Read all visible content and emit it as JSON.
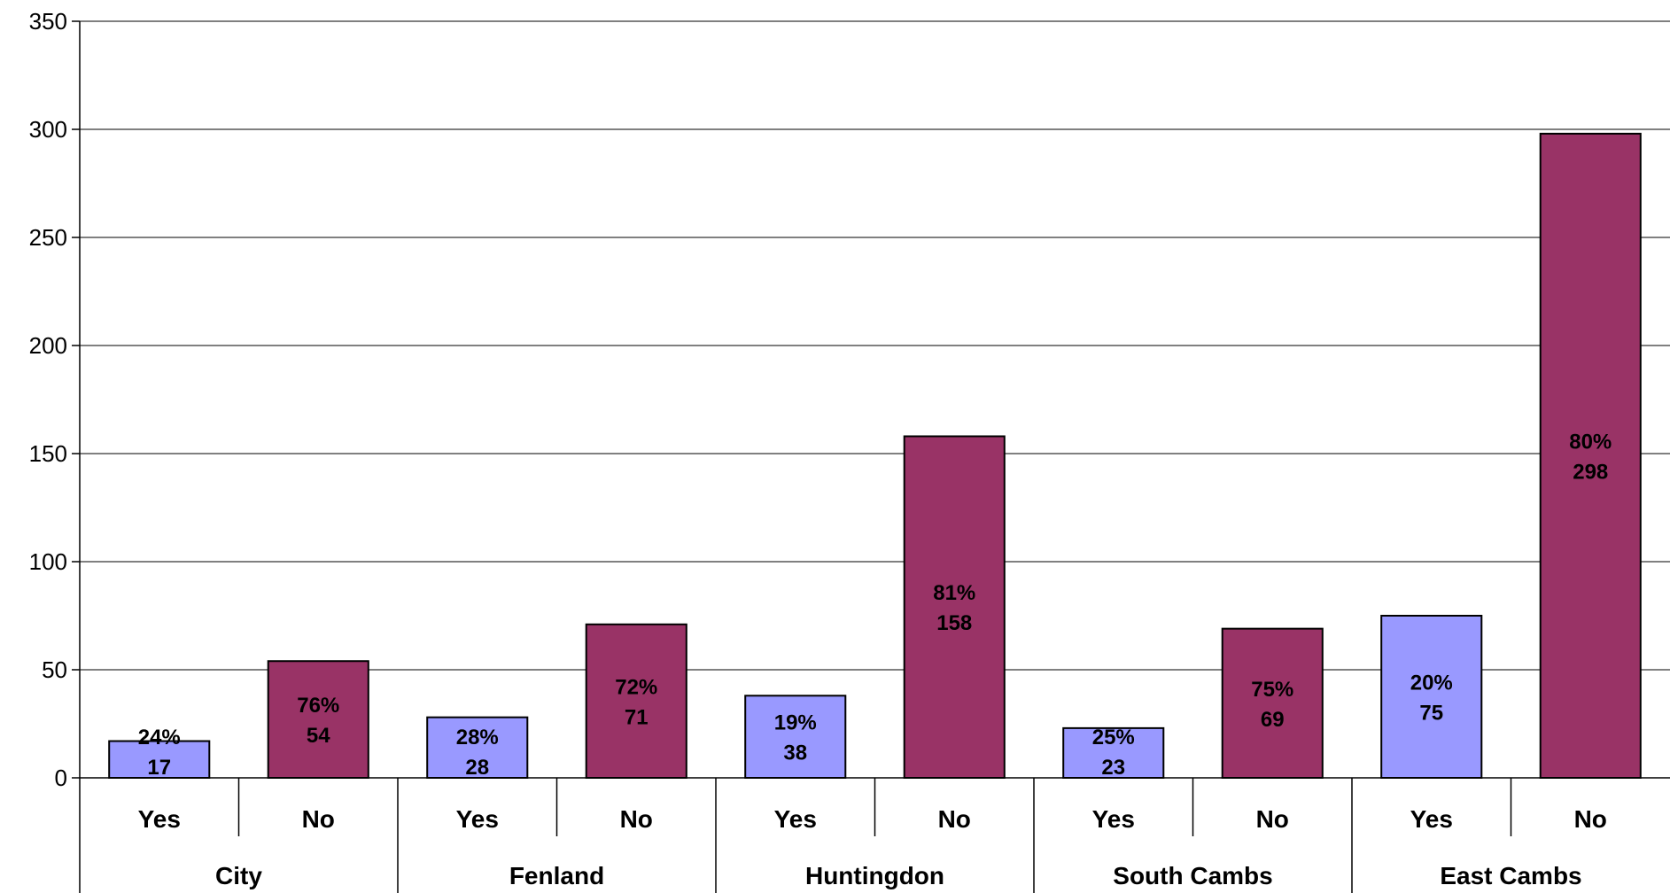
{
  "chart_data": {
    "type": "bar",
    "title": "",
    "xlabel": "",
    "ylabel": "",
    "ylim": [
      0,
      350
    ],
    "yticks": [
      0,
      50,
      100,
      150,
      200,
      250,
      300,
      350
    ],
    "ytick_labels": [
      "0",
      "50",
      "100",
      "150",
      "200",
      "250",
      "300",
      "350"
    ],
    "grid": true,
    "legend": "none",
    "groups": [
      {
        "name": "City",
        "bars": [
          {
            "category": "Yes",
            "value": 17,
            "pct_label": "24%",
            "value_label": "17"
          },
          {
            "category": "No",
            "value": 54,
            "pct_label": "76%",
            "value_label": "54"
          }
        ]
      },
      {
        "name": "Fenland",
        "bars": [
          {
            "category": "Yes",
            "value": 28,
            "pct_label": "28%",
            "value_label": "28"
          },
          {
            "category": "No",
            "value": 71,
            "pct_label": "72%",
            "value_label": "71"
          }
        ]
      },
      {
        "name": "Huntingdon",
        "bars": [
          {
            "category": "Yes",
            "value": 38,
            "pct_label": "19%",
            "value_label": "38"
          },
          {
            "category": "No",
            "value": 158,
            "pct_label": "81%",
            "value_label": "158"
          }
        ]
      },
      {
        "name": "South Cambs",
        "bars": [
          {
            "category": "Yes",
            "value": 23,
            "pct_label": "25%",
            "value_label": "23"
          },
          {
            "category": "No",
            "value": 69,
            "pct_label": "75%",
            "value_label": "69"
          }
        ]
      },
      {
        "name": "East Cambs",
        "bars": [
          {
            "category": "Yes",
            "value": 75,
            "pct_label": "20%",
            "value_label": "75"
          },
          {
            "category": "No",
            "value": 298,
            "pct_label": "80%",
            "value_label": "298"
          }
        ]
      }
    ],
    "colors": {
      "Yes": "#9999FF",
      "No": "#993366",
      "grid": "#000000",
      "outline": "#000000"
    }
  }
}
